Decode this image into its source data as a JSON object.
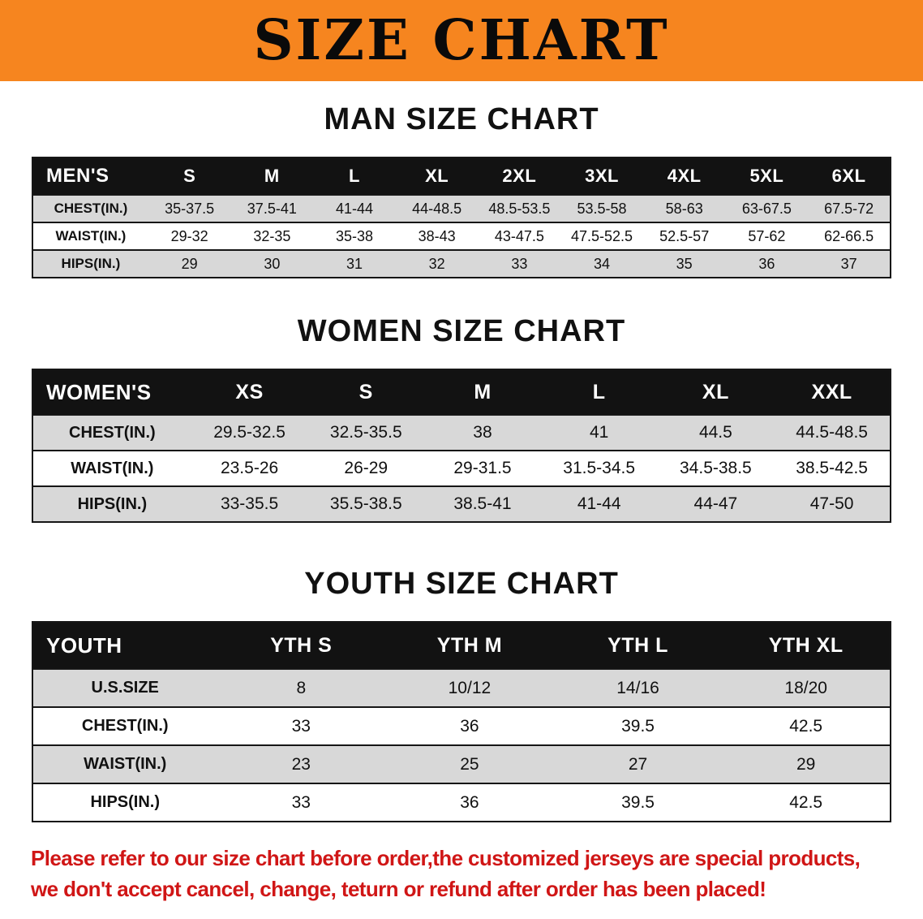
{
  "banner": {
    "title": "SIZE CHART",
    "bg_color": "#f6851f"
  },
  "sections": [
    {
      "id": "men",
      "heading": "MAN SIZE CHART",
      "table": {
        "header": [
          "MEN'S",
          "S",
          "M",
          "L",
          "XL",
          "2XL",
          "3XL",
          "4XL",
          "5XL",
          "6XL"
        ],
        "rows": [
          [
            "CHEST(IN.)",
            "35-37.5",
            "37.5-41",
            "41-44",
            "44-48.5",
            "48.5-53.5",
            "53.5-58",
            "58-63",
            "63-67.5",
            "67.5-72"
          ],
          [
            "WAIST(IN.)",
            "29-32",
            "32-35",
            "35-38",
            "38-43",
            "43-47.5",
            "47.5-52.5",
            "52.5-57",
            "57-62",
            "62-66.5"
          ],
          [
            "HIPS(IN.)",
            "29",
            "30",
            "31",
            "32",
            "33",
            "34",
            "35",
            "36",
            "37"
          ]
        ]
      }
    },
    {
      "id": "women",
      "heading": "WOMEN SIZE CHART",
      "table": {
        "header": [
          "WOMEN'S",
          "XS",
          "S",
          "M",
          "L",
          "XL",
          "XXL"
        ],
        "rows": [
          [
            "CHEST(IN.)",
            "29.5-32.5",
            "32.5-35.5",
            "38",
            "41",
            "44.5",
            "44.5-48.5"
          ],
          [
            "WAIST(IN.)",
            "23.5-26",
            "26-29",
            "29-31.5",
            "31.5-34.5",
            "34.5-38.5",
            "38.5-42.5"
          ],
          [
            "HIPS(IN.)",
            "33-35.5",
            "35.5-38.5",
            "38.5-41",
            "41-44",
            "44-47",
            "47-50"
          ]
        ]
      }
    },
    {
      "id": "youth",
      "heading": "YOUTH SIZE CHART",
      "table": {
        "header": [
          "YOUTH",
          "YTH S",
          "YTH M",
          "YTH L",
          "YTH XL"
        ],
        "rows": [
          [
            "U.S.SIZE",
            "8",
            "10/12",
            "14/16",
            "18/20"
          ],
          [
            "CHEST(IN.)",
            "33",
            "36",
            "39.5",
            "42.5"
          ],
          [
            "WAIST(IN.)",
            "23",
            "25",
            "27",
            "29"
          ],
          [
            "HIPS(IN.)",
            "33",
            "36",
            "39.5",
            "42.5"
          ]
        ]
      }
    }
  ],
  "disclaimer": {
    "color": "#d01616",
    "lines": [
      "Please refer to our size chart before order,the customized jerseys are special products,",
      "we don't accept cancel, change, teturn or refund after order has been placed!"
    ]
  }
}
